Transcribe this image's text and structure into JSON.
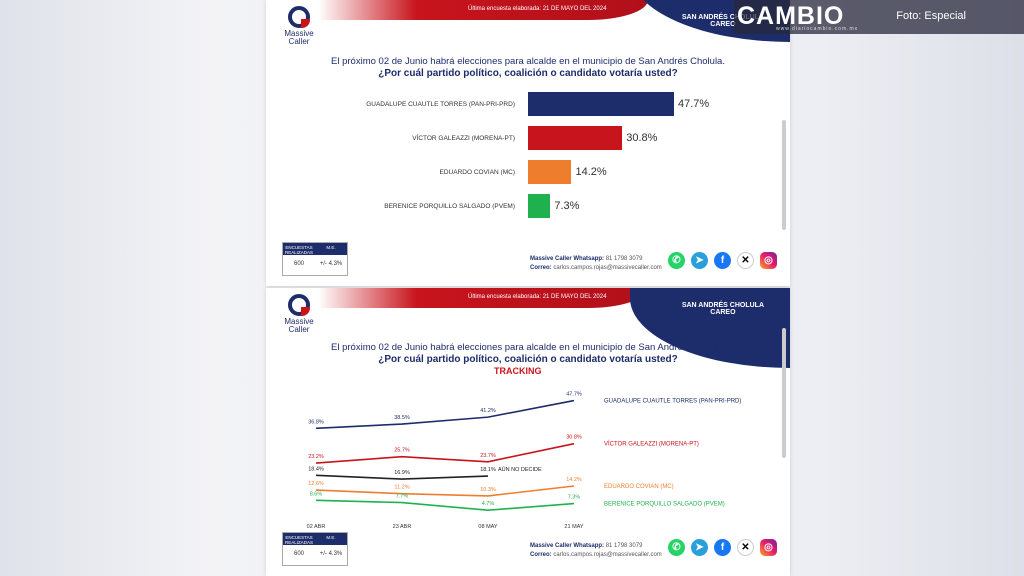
{
  "header": {
    "brand": "CAMBIO",
    "brand_sub": "www.diariocambio.com.mx",
    "photo_credit": "Foto: Especial"
  },
  "slides": {
    "date_line": "Última encuesta elaborada:      21 DE MAYO DEL 2024",
    "location": "SAN ANDRÉS CHOLULA",
    "type": "CAREO",
    "logo": "Massive Caller",
    "question_line1": "El próximo 02 de Junio habrá elecciones para alcalde en el municipio de San Andrés Cholula.",
    "question_line2": "¿Por cuál partido político, coalición o candidato votaría usted?",
    "tracking_label": "TRACKING",
    "footer": {
      "col1": "ENCUESTAS REALIZADAS",
      "col2": "M.E.",
      "val1": "600",
      "val2": "+/- 4.3%"
    },
    "contact_line1_label": "Massive Caller Whatsapp:",
    "contact_line1_value": "81 1798 3079",
    "contact_line2_label": "Correo:",
    "contact_line2_value": "carlos.campos.rojas@massivecaller.com",
    "social_icons": [
      "whatsapp-icon",
      "telegram-icon",
      "facebook-icon",
      "x-icon",
      "instagram-icon"
    ]
  },
  "colors": {
    "pan": "#1d2d6b",
    "morena": "#c8141c",
    "mc": "#ee7e2e",
    "pvem": "#1fb14e",
    "undecided": "#222222"
  },
  "chart_data": [
    {
      "type": "bar",
      "categories": [
        "GUADALUPE CUAUTLE TORRES (PAN-PRI-PRD)",
        "VÍCTOR GALEAZZI (MORENA-PT)",
        "EDUARDO COVIAN (MC)",
        "BERENICE PORQUILLO SALGADO (PVEM)"
      ],
      "values": [
        47.7,
        30.8,
        14.2,
        7.3
      ],
      "value_labels": [
        "47.7%",
        "30.8%",
        "14.2%",
        "7.3%"
      ]
    },
    {
      "type": "line",
      "x": [
        "02 ABR",
        "23 ABR",
        "08 MAY",
        "21 MAY"
      ],
      "series": [
        {
          "name": "GUADALUPE CUAUTLE TORRES (PAN-PRI-PRD)",
          "values": [
            36.8,
            38.5,
            41.2,
            47.7
          ],
          "labels": [
            "36.8%",
            "38.5%",
            "41.2%",
            "47.7%"
          ],
          "color": "#1d2d6b"
        },
        {
          "name": "VÍCTOR GALEAZZI (MORENA-PT)",
          "values": [
            23.2,
            25.7,
            23.7,
            30.8
          ],
          "labels": [
            "23.2%",
            "25.7%",
            "23.7%",
            "30.8%"
          ],
          "color": "#c8141c"
        },
        {
          "name": "AÚN NO DECIDE",
          "values": [
            18.4,
            16.9,
            18.1,
            null
          ],
          "labels": [
            "18.4%",
            "16.9%",
            "18.1%",
            ""
          ],
          "color": "#222222"
        },
        {
          "name": "EDUARDO COVIAN (MC)",
          "values": [
            12.6,
            11.2,
            10.3,
            14.2
          ],
          "labels": [
            "12.6%",
            "11.2%",
            "10.3%",
            "14.2%"
          ],
          "color": "#ee7e2e"
        },
        {
          "name": "BERENICE PORQUILLO SALGADO (PVEM)",
          "values": [
            8.6,
            7.7,
            4.7,
            7.3
          ],
          "labels": [
            "8.6%",
            "7.7%",
            "4.7%",
            "7.3%"
          ],
          "color": "#1fb14e"
        }
      ],
      "grid": false
    }
  ]
}
